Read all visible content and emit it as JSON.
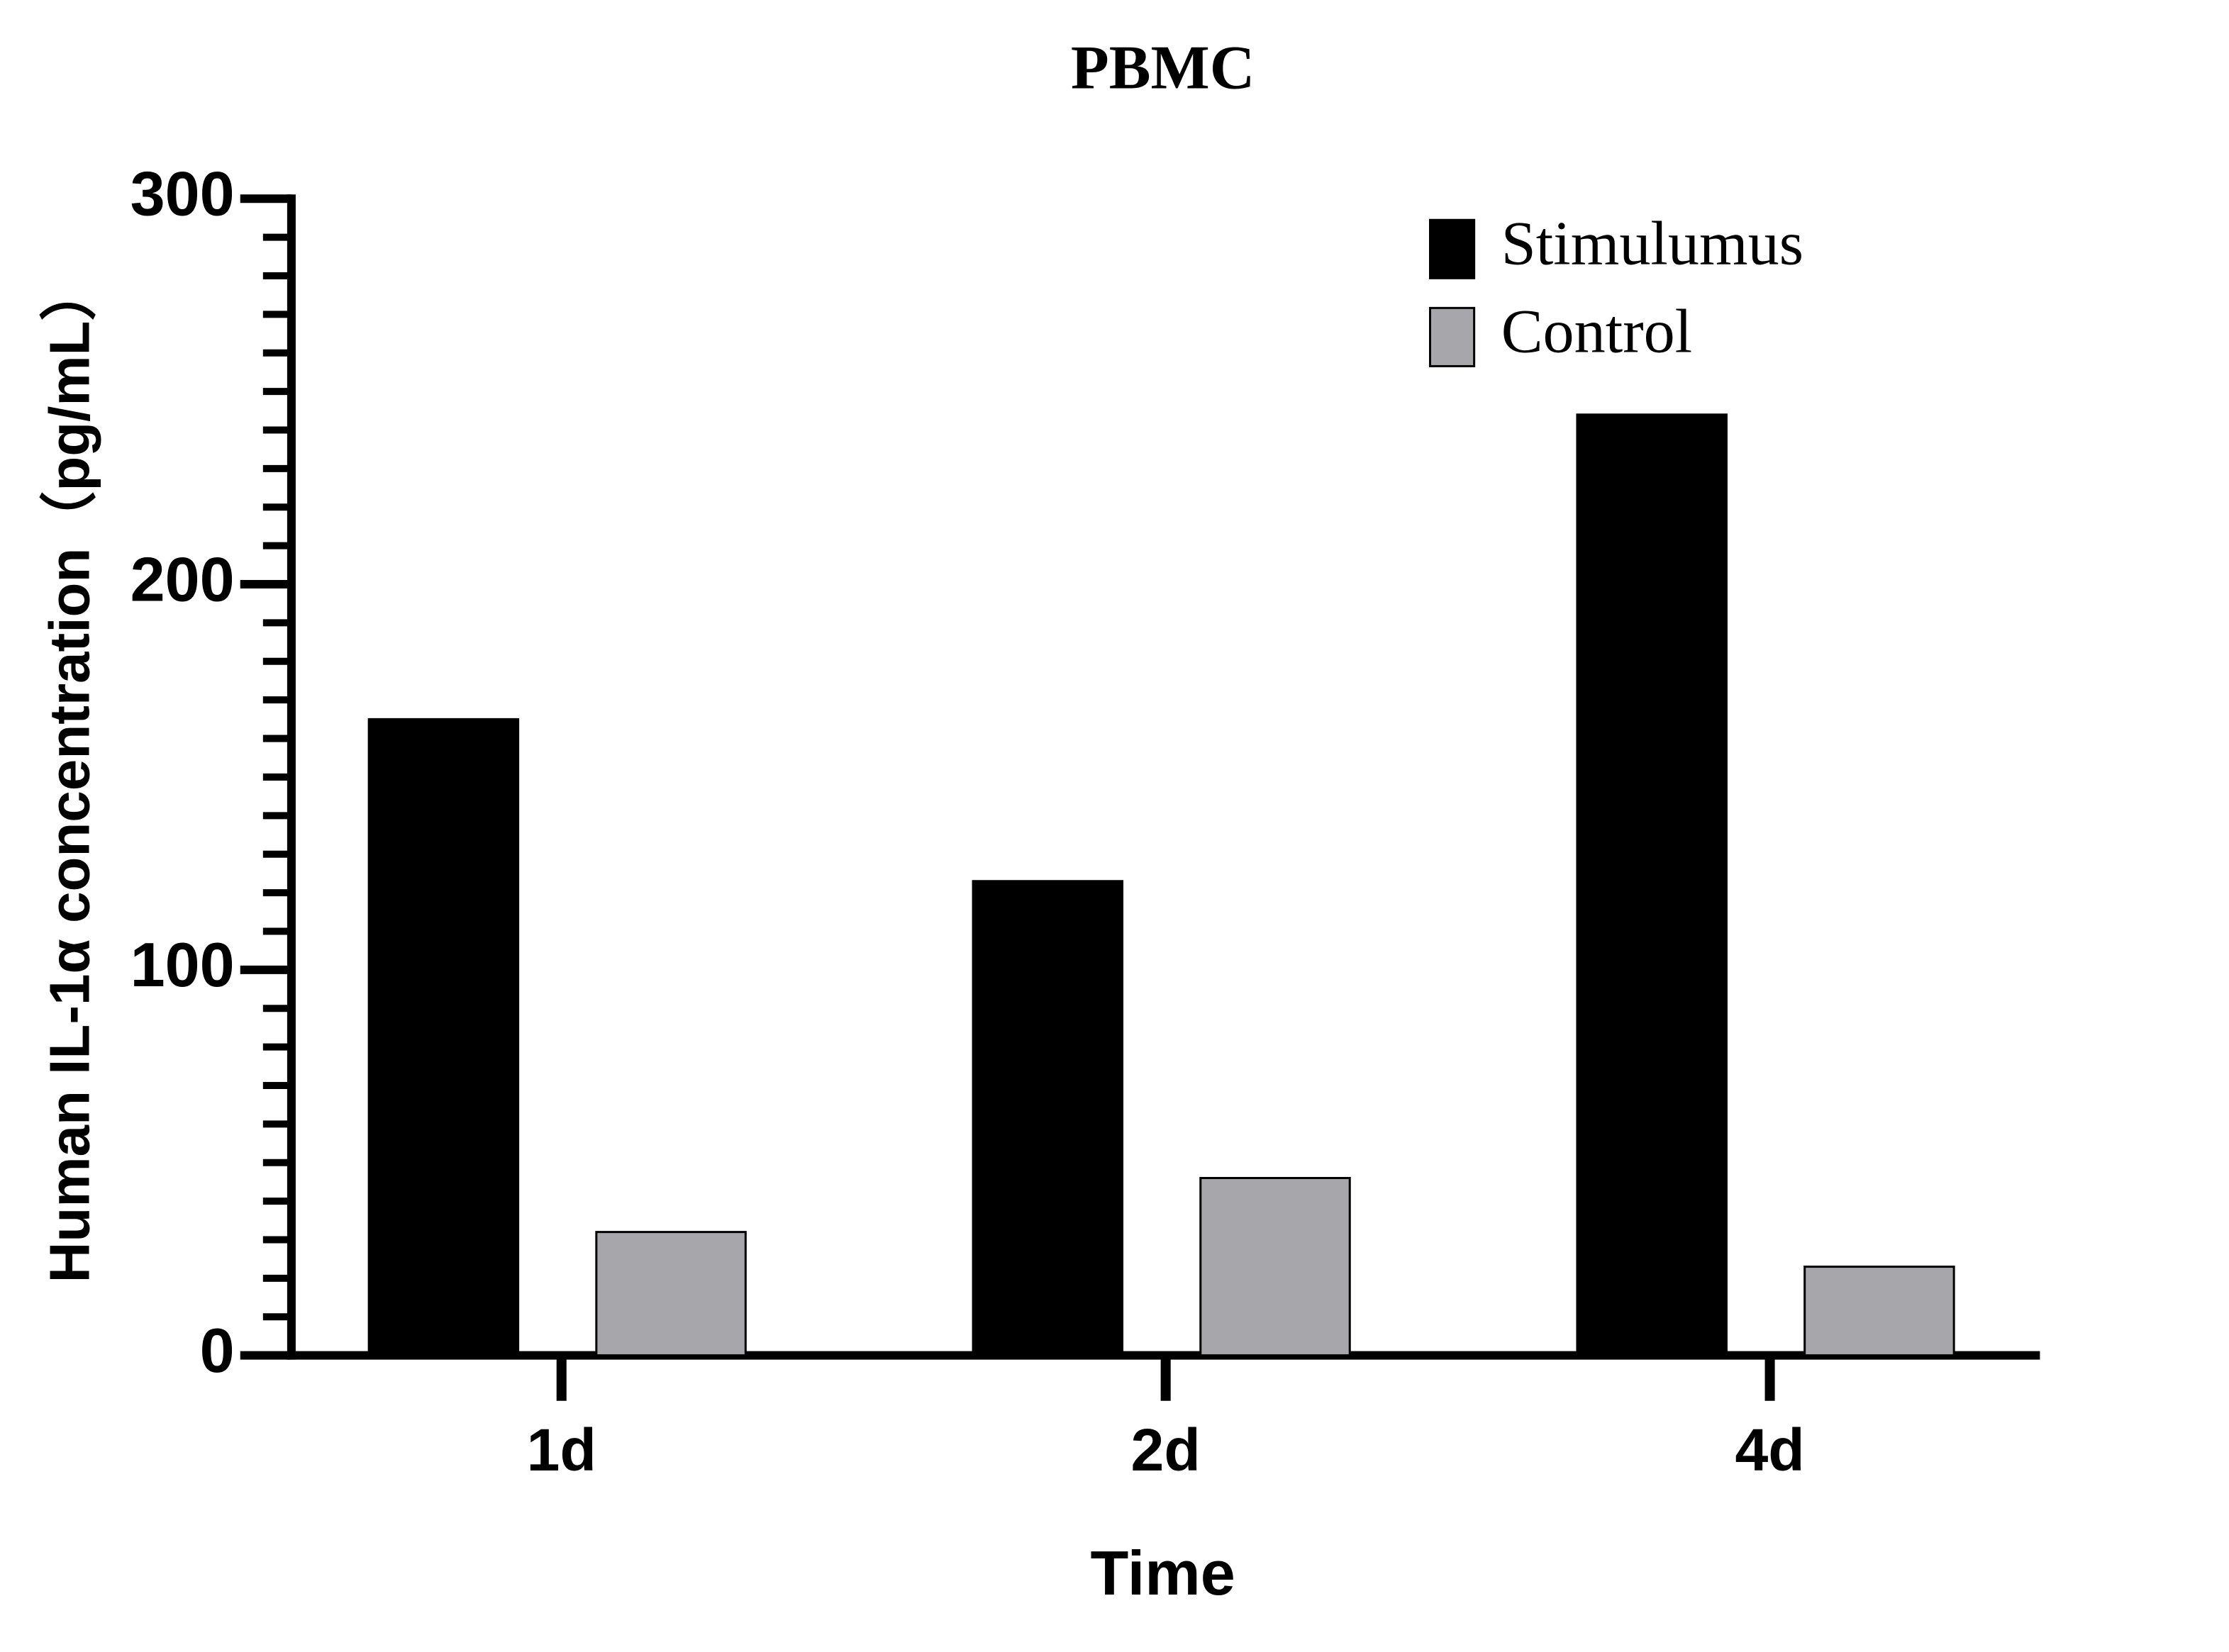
{
  "chart_data": {
    "type": "bar",
    "title": "PBMC",
    "x_label": "Time",
    "y_label": "Human IL-1α concentration（pg/mL）",
    "categories": [
      "1d",
      "2d",
      "4d"
    ],
    "series": [
      {
        "name": "Stimulumus",
        "color": "#000000",
        "values": [
          165,
          123,
          244
        ]
      },
      {
        "name": "Control",
        "color": "#a7a7ab",
        "values": [
          32,
          46,
          23
        ]
      }
    ],
    "ylim": [
      0,
      300
    ],
    "yticks": [
      0,
      100,
      200,
      300
    ],
    "yminorticks": [
      10,
      20,
      30,
      40,
      50,
      60,
      70,
      80,
      90,
      110,
      120,
      130,
      140,
      150,
      160,
      170,
      180,
      190,
      210,
      220,
      230,
      240,
      250,
      260,
      270,
      280,
      290
    ],
    "legend": "top right",
    "grid": false
  }
}
